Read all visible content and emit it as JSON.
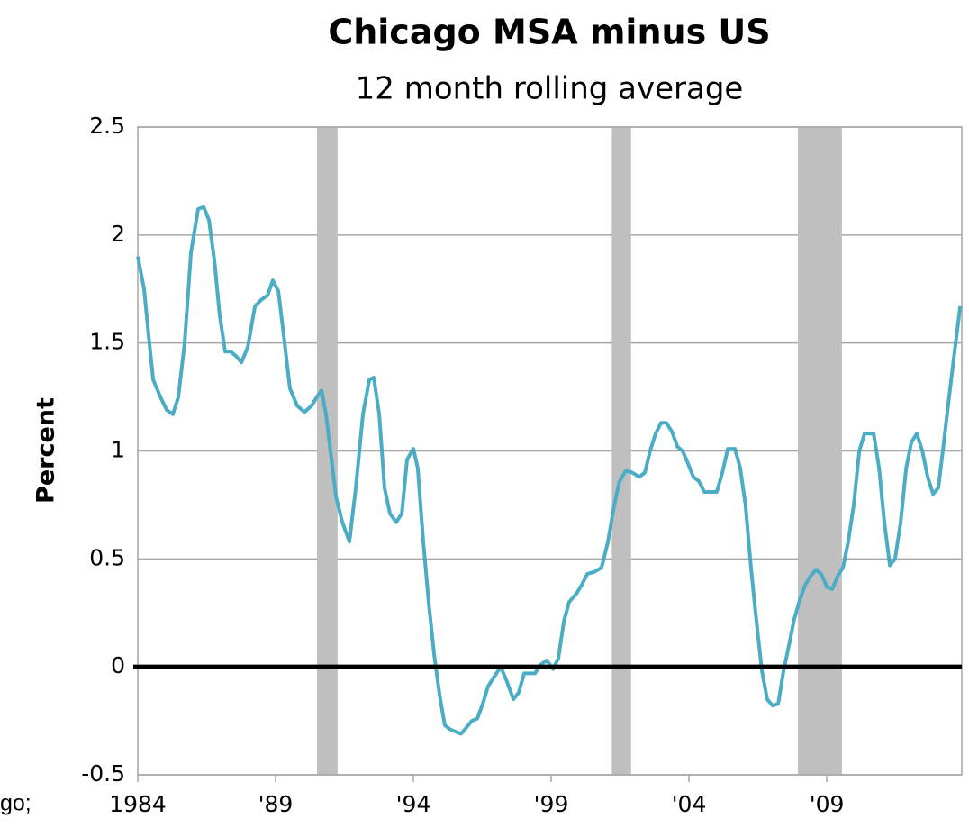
{
  "chart_data": {
    "type": "line",
    "title": "Chicago MSA minus US",
    "subtitle": "12 month rolling average",
    "y_label": "Percent",
    "footnote": "go;",
    "xlim": [
      1984,
      2013.9
    ],
    "xticks": [
      1984,
      {
        "value": 1989,
        "label": "'89"
      },
      {
        "value": 1994,
        "label": "'94"
      },
      {
        "value": 1999,
        "label": "'99"
      },
      {
        "value": 2004,
        "label": "'04"
      },
      {
        "value": 2009,
        "label": "'09"
      }
    ],
    "ylim": [
      -0.5,
      2.5
    ],
    "yticks": [
      -0.5,
      0,
      0.5,
      1,
      1.5,
      2,
      2.5
    ],
    "grid": true,
    "zero_line": true,
    "shaded_regions": [
      [
        1990.5,
        1991.25
      ],
      [
        2001.2,
        2001.9
      ],
      [
        2007.95,
        2009.55
      ]
    ],
    "shade_color": "#bfbfbf",
    "series": [
      {
        "color": "#4bacc6",
        "x": [
          1984.0,
          1984.23,
          1984.39,
          1984.56,
          1984.82,
          1985.05,
          1985.27,
          1985.47,
          1985.7,
          1985.93,
          1986.19,
          1986.39,
          1986.58,
          1986.78,
          1986.97,
          1987.17,
          1987.37,
          1987.56,
          1987.76,
          1987.99,
          1988.25,
          1988.48,
          1988.71,
          1988.9,
          1989.1,
          1989.29,
          1989.52,
          1989.78,
          1990.05,
          1990.31,
          1990.5,
          1990.67,
          1990.83,
          1990.99,
          1991.19,
          1991.42,
          1991.68,
          1991.91,
          1992.17,
          1992.4,
          1992.56,
          1992.76,
          1992.95,
          1993.15,
          1993.38,
          1993.58,
          1993.77,
          1994.0,
          1994.16,
          1994.36,
          1994.56,
          1994.75,
          1994.95,
          1995.14,
          1995.34,
          1995.54,
          1995.73,
          1995.93,
          1996.12,
          1996.32,
          1996.52,
          1996.71,
          1996.91,
          1997.17,
          1997.37,
          1997.63,
          1997.82,
          1998.02,
          1998.22,
          1998.41,
          1998.61,
          1998.84,
          1999.07,
          1999.26,
          1999.46,
          1999.65,
          1999.92,
          2000.11,
          2000.31,
          2000.57,
          2000.83,
          2001.06,
          2001.29,
          2001.48,
          2001.71,
          2001.94,
          2002.2,
          2002.4,
          2002.59,
          2002.79,
          2002.99,
          2003.18,
          2003.38,
          2003.58,
          2003.77,
          2003.97,
          2004.16,
          2004.36,
          2004.56,
          2004.82,
          2005.01,
          2005.21,
          2005.41,
          2005.67,
          2005.86,
          2006.05,
          2006.25,
          2006.45,
          2006.65,
          2006.84,
          2007.04,
          2007.24,
          2007.43,
          2007.63,
          2007.82,
          2008.02,
          2008.22,
          2008.41,
          2008.61,
          2008.8,
          2009.0,
          2009.2,
          2009.39,
          2009.59,
          2009.78,
          2009.98,
          2010.18,
          2010.37,
          2010.7,
          2010.9,
          2011.09,
          2011.29,
          2011.48,
          2011.68,
          2011.88,
          2012.07,
          2012.27,
          2012.47,
          2012.66,
          2012.86,
          2013.05,
          2013.25,
          2013.44,
          2013.64,
          2013.84
        ],
        "values": [
          1.9,
          1.75,
          1.54,
          1.33,
          1.25,
          1.19,
          1.17,
          1.25,
          1.5,
          1.92,
          2.12,
          2.13,
          2.07,
          1.88,
          1.63,
          1.46,
          1.46,
          1.44,
          1.41,
          1.48,
          1.67,
          1.7,
          1.72,
          1.79,
          1.74,
          1.54,
          1.29,
          1.21,
          1.18,
          1.21,
          1.25,
          1.28,
          1.17,
          1.0,
          0.79,
          0.67,
          0.58,
          0.83,
          1.17,
          1.33,
          1.34,
          1.17,
          0.83,
          0.71,
          0.67,
          0.71,
          0.96,
          1.01,
          0.92,
          0.58,
          0.29,
          0.06,
          -0.13,
          -0.27,
          -0.29,
          -0.3,
          -0.31,
          -0.28,
          -0.25,
          -0.24,
          -0.17,
          -0.09,
          -0.05,
          0,
          -0.06,
          -0.15,
          -0.12,
          -0.03,
          -0.03,
          -0.03,
          0.01,
          0.03,
          -0.01,
          0.04,
          0.21,
          0.3,
          0.34,
          0.38,
          0.43,
          0.44,
          0.46,
          0.58,
          0.75,
          0.86,
          0.91,
          0.9,
          0.88,
          0.9,
          1.0,
          1.08,
          1.13,
          1.13,
          1.09,
          1.02,
          1.0,
          0.94,
          0.88,
          0.86,
          0.81,
          0.81,
          0.81,
          0.9,
          1.01,
          1.01,
          0.92,
          0.75,
          0.46,
          0.21,
          -0.02,
          -0.15,
          -0.18,
          -0.17,
          -0.02,
          0.1,
          0.22,
          0.31,
          0.38,
          0.42,
          0.45,
          0.43,
          0.37,
          0.36,
          0.42,
          0.46,
          0.58,
          0.75,
          1.0,
          1.08,
          1.08,
          0.92,
          0.67,
          0.47,
          0.5,
          0.67,
          0.92,
          1.04,
          1.08,
          1.0,
          0.88,
          0.8,
          0.83,
          1.04,
          1.25,
          1.46,
          1.67
        ]
      }
    ]
  }
}
